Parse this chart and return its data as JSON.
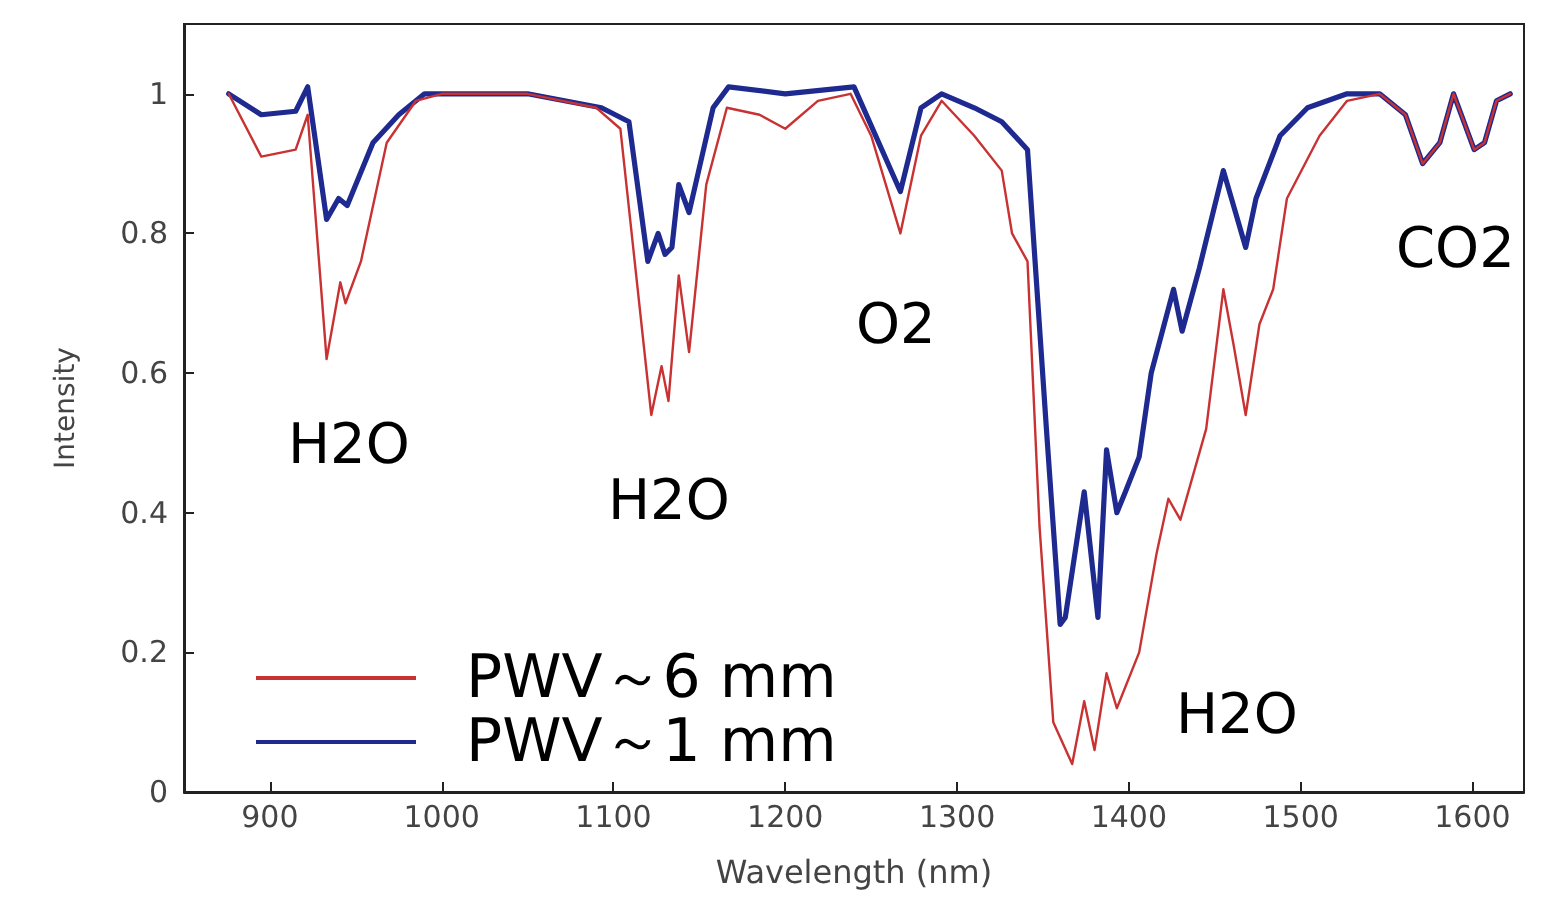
{
  "chart_data": {
    "type": "line",
    "xlabel": "Wavelength (nm)",
    "ylabel": "Intensity",
    "xlim": [
      850,
      1630
    ],
    "xticks": [
      900,
      1000,
      1100,
      1200,
      1300,
      1400,
      1500,
      1600
    ],
    "ylim": [
      0,
      1.1
    ],
    "yticks": [
      0,
      0.2,
      0.4,
      0.6,
      0.8,
      1
    ],
    "grid": false,
    "legend": "bottom left",
    "marker": "none",
    "line_style": "solid",
    "series": [
      {
        "name": "PWV～6 mm",
        "color": "#c83232",
        "x": [
          876,
          895,
          915,
          922,
          933,
          941,
          944,
          953,
          968,
          985,
          1000,
          1050,
          1090,
          1104,
          1122,
          1128,
          1132,
          1138,
          1144,
          1154,
          1166,
          1185,
          1200,
          1219,
          1238,
          1250,
          1267,
          1279,
          1291,
          1310,
          1326,
          1332,
          1341,
          1348,
          1356,
          1367,
          1374,
          1380,
          1387,
          1393,
          1406,
          1416,
          1423,
          1430,
          1445,
          1455,
          1461,
          1468,
          1476,
          1484,
          1492,
          1511,
          1527,
          1546,
          1561,
          1571,
          1581,
          1589,
          1601,
          1607,
          1614,
          1622
        ],
        "values": [
          1.0,
          0.91,
          0.92,
          0.97,
          0.62,
          0.73,
          0.7,
          0.76,
          0.93,
          0.99,
          1.0,
          1.0,
          0.98,
          0.95,
          0.54,
          0.61,
          0.56,
          0.74,
          0.63,
          0.87,
          0.98,
          0.97,
          0.95,
          0.99,
          1.0,
          0.94,
          0.8,
          0.94,
          0.99,
          0.94,
          0.89,
          0.8,
          0.76,
          0.38,
          0.1,
          0.04,
          0.13,
          0.06,
          0.17,
          0.12,
          0.2,
          0.34,
          0.42,
          0.39,
          0.52,
          0.72,
          0.64,
          0.54,
          0.67,
          0.72,
          0.85,
          0.94,
          0.99,
          1.0,
          0.97,
          0.9,
          0.93,
          1.0,
          0.92,
          0.93,
          0.99,
          1.0
        ]
      },
      {
        "name": "PWV～1 mm",
        "color": "#1e2a90",
        "x": [
          876,
          895,
          915,
          922,
          933,
          940,
          945,
          960,
          975,
          990,
          1050,
          1093,
          1109,
          1120,
          1126,
          1130,
          1134,
          1138,
          1144,
          1158,
          1167,
          1200,
          1240,
          1267,
          1279,
          1291,
          1310,
          1326,
          1341,
          1352,
          1360,
          1363,
          1374,
          1382,
          1387,
          1393,
          1398,
          1406,
          1413,
          1426,
          1431,
          1441,
          1455,
          1468,
          1474,
          1488,
          1504,
          1527,
          1546,
          1561,
          1571,
          1581,
          1589,
          1601,
          1607,
          1614,
          1622
        ],
        "values": [
          1.0,
          0.97,
          0.975,
          1.01,
          0.82,
          0.85,
          0.84,
          0.93,
          0.97,
          1.0,
          1.0,
          0.98,
          0.96,
          0.76,
          0.8,
          0.77,
          0.78,
          0.87,
          0.83,
          0.98,
          1.01,
          1.0,
          1.01,
          0.86,
          0.98,
          1.0,
          0.98,
          0.96,
          0.92,
          0.52,
          0.24,
          0.25,
          0.43,
          0.25,
          0.49,
          0.4,
          0.43,
          0.48,
          0.6,
          0.72,
          0.66,
          0.75,
          0.89,
          0.78,
          0.85,
          0.94,
          0.98,
          1.0,
          1.0,
          0.97,
          0.9,
          0.93,
          1.0,
          0.92,
          0.93,
          0.99,
          1.0
        ]
      }
    ],
    "annotations": [
      "H2O",
      "H2O",
      "O2",
      "H2O",
      "CO2"
    ]
  }
}
